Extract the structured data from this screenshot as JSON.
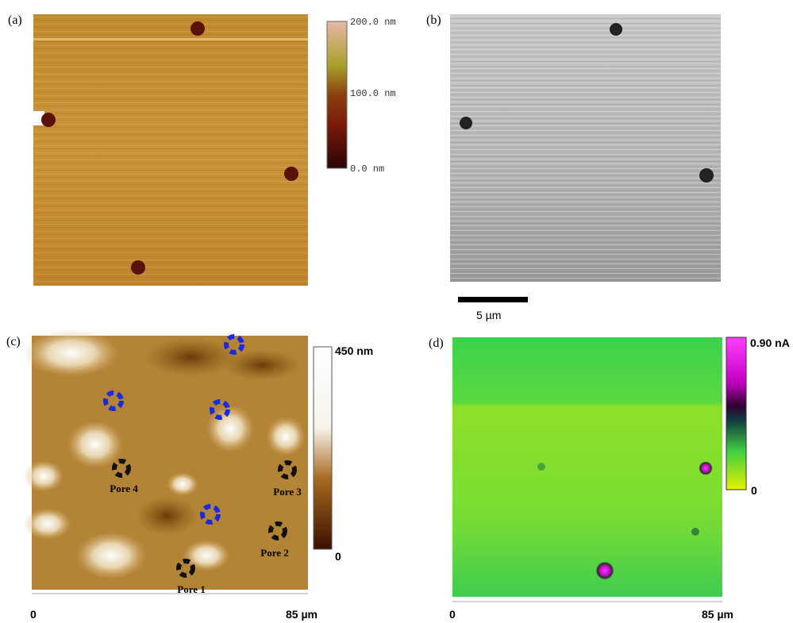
{
  "panels": [
    {
      "label": "(a)",
      "colorbar": [
        "0.0 nm",
        "100.0 nm",
        "200.0 nm"
      ]
    },
    {
      "label": "(b)",
      "scale": "5 µm"
    },
    {
      "label": "(c)",
      "colorbar": [
        "0",
        "450 nm"
      ],
      "pores": [
        "Pore 1",
        "Pore 2",
        "Pore 3",
        "Pore 4"
      ],
      "axis": [
        "0",
        "85 µm"
      ]
    },
    {
      "label": "(d)",
      "colorbar": [
        "0",
        "0.90 nA"
      ],
      "axis": [
        "0",
        "85 µm"
      ]
    }
  ]
}
